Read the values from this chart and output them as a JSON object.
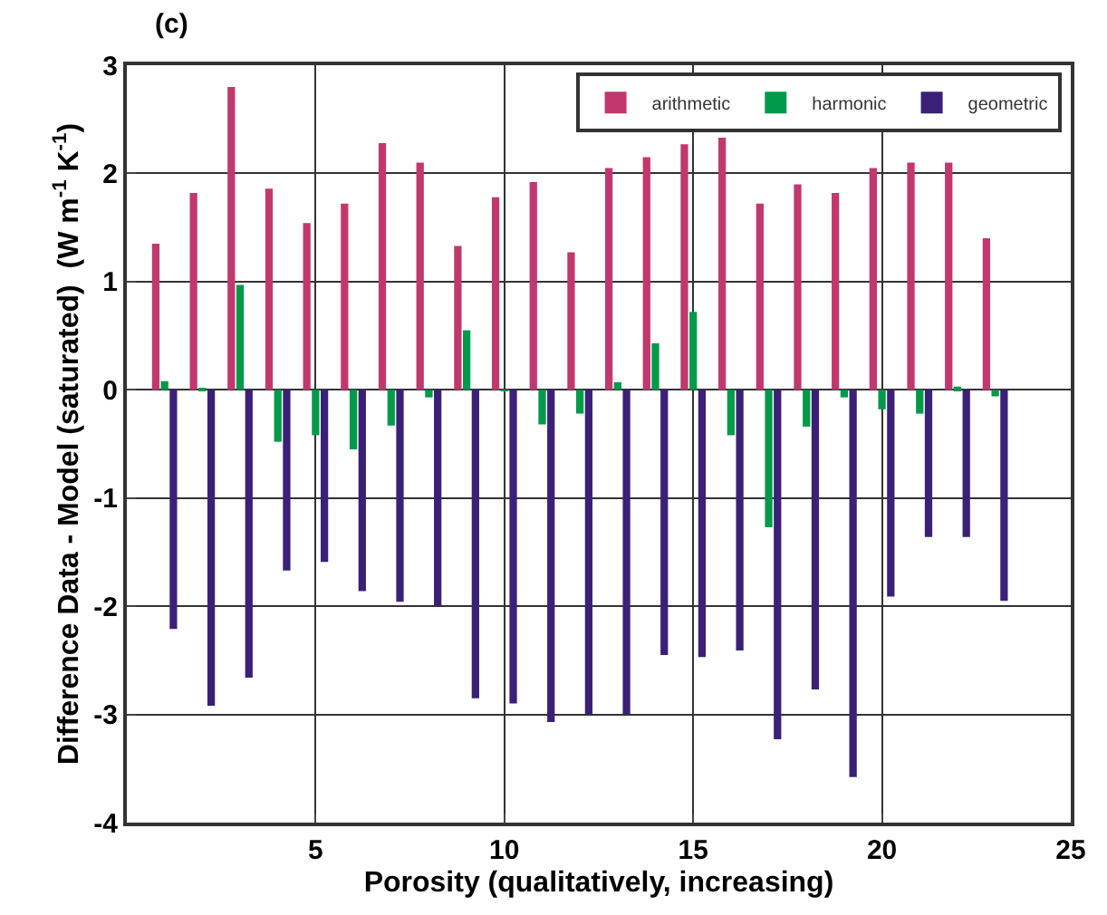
{
  "chart_data": {
    "type": "bar",
    "title": "(c)",
    "xlabel": "Porosity (qualitatively, increasing)",
    "ylabel": "Difference Data - Model (saturated)  (W m$^{-1}$ K$^{-1}$)",
    "x": [
      1,
      2,
      3,
      4,
      5,
      6,
      7,
      8,
      9,
      10,
      11,
      12,
      13,
      14,
      15,
      16,
      17,
      18,
      19,
      20,
      21,
      22,
      23
    ],
    "series": [
      {
        "name": "arithmetic",
        "color": "#c0386e",
        "values": [
          1.35,
          1.82,
          2.8,
          1.86,
          1.54,
          1.72,
          2.28,
          2.1,
          1.33,
          1.78,
          1.92,
          1.27,
          2.05,
          2.15,
          2.27,
          2.33,
          1.72,
          1.9,
          1.82,
          2.05,
          2.1,
          2.1,
          1.4
        ]
      },
      {
        "name": "harmonic",
        "color": "#009a4a",
        "values": [
          0.08,
          0.01,
          0.97,
          -0.48,
          -0.42,
          -0.55,
          -0.33,
          -0.07,
          0.55,
          -0.01,
          -0.32,
          -0.22,
          0.07,
          0.43,
          0.72,
          -0.42,
          -1.27,
          -0.34,
          -0.07,
          -0.18,
          -0.22,
          0.03,
          -0.06
        ]
      },
      {
        "name": "geometric",
        "color": "#3b2077",
        "values": [
          -2.21,
          -2.92,
          -2.66,
          -1.67,
          -1.59,
          -1.86,
          -1.96,
          -2.0,
          -2.85,
          -2.9,
          -3.07,
          -3.0,
          -3.0,
          -2.45,
          -2.47,
          -2.41,
          -3.23,
          -2.77,
          -3.58,
          -1.91,
          -1.36,
          -1.36,
          -1.95
        ]
      }
    ],
    "xlim": [
      0,
      25
    ],
    "xticks": [
      5,
      10,
      15,
      20,
      25
    ],
    "ylim": [
      -4,
      3
    ],
    "yticks": [
      -4,
      -3,
      -2,
      -1,
      0,
      1,
      2,
      3
    ],
    "grid": true,
    "legend": "top right"
  }
}
